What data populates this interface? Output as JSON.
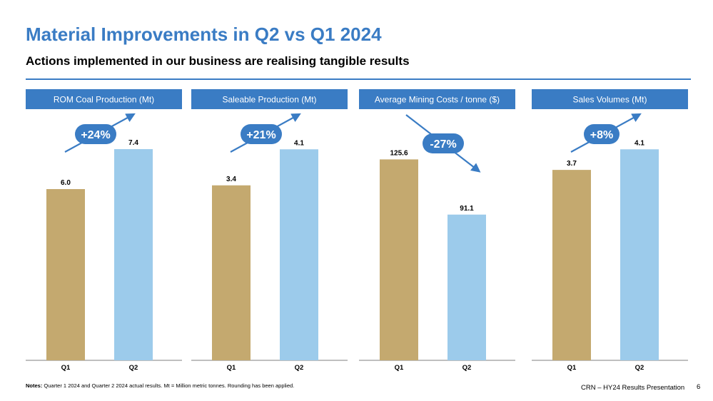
{
  "header": {
    "title": "Material Improvements in Q2 vs Q1 2024",
    "subtitle": "Actions implemented in our business are realising tangible results"
  },
  "colors": {
    "accent": "#3a7cc4",
    "q1_bar": "#c4a96f",
    "q2_bar": "#9ccbeb",
    "badge": "#3a7cc4"
  },
  "chart_data": [
    {
      "type": "bar",
      "title": "ROM Coal Production (Mt)",
      "categories": [
        "Q1",
        "Q2"
      ],
      "values": [
        6.0,
        7.4
      ],
      "labels": [
        "6.0",
        "7.4"
      ],
      "ylim": [
        0,
        8.8
      ],
      "change_label": "+24%",
      "direction": "up"
    },
    {
      "type": "bar",
      "title": "Saleable Production (Mt)",
      "categories": [
        "Q1",
        "Q2"
      ],
      "values": [
        3.4,
        4.1
      ],
      "labels": [
        "3.4",
        "4.1"
      ],
      "ylim": [
        0,
        4.88
      ],
      "change_label": "+21%",
      "direction": "up"
    },
    {
      "type": "bar",
      "title": "Average Mining Costs / tonne ($)",
      "categories": [
        "Q1",
        "Q2"
      ],
      "values": [
        125.6,
        91.1
      ],
      "labels": [
        "125.6",
        "91.1"
      ],
      "ylim": [
        0,
        157
      ],
      "change_label": "-27%",
      "direction": "down"
    },
    {
      "type": "bar",
      "title": "Sales Volumes (Mt)",
      "categories": [
        "Q1",
        "Q2"
      ],
      "values": [
        3.7,
        4.1
      ],
      "labels": [
        "3.7",
        "4.1"
      ],
      "ylim": [
        0,
        4.88
      ],
      "change_label": "+8%",
      "direction": "up"
    }
  ],
  "notes": {
    "label": "Notes:",
    "text": " Quarter 1 2024 and Quarter 2 2024 actual results. Mt = Million metric tonnes. Rounding has been applied."
  },
  "footer": {
    "presentation": "CRN – HY24 Results Presentation",
    "page_number": "6"
  }
}
